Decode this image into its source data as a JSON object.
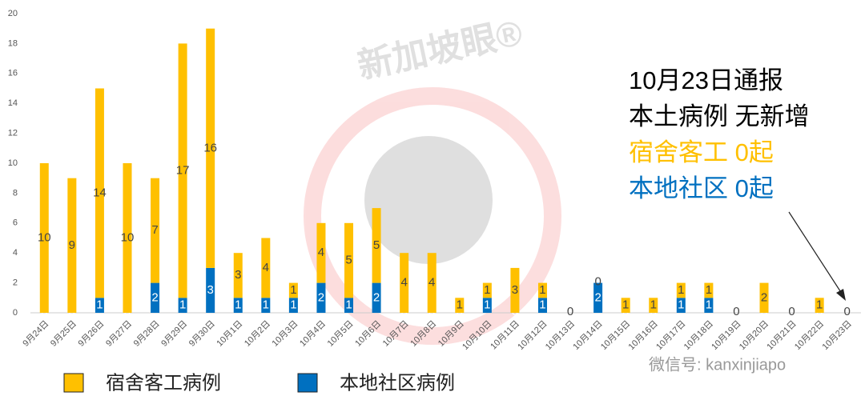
{
  "chart_data": {
    "type": "stacked-bar",
    "categories": [
      "9月24日",
      "9月25日",
      "9月26日",
      "9月27日",
      "9月28日",
      "9月29日",
      "9月30日",
      "10月1日",
      "10月2日",
      "10月3日",
      "10月4日",
      "10月5日",
      "10月6日",
      "10月7日",
      "10月8日",
      "10月9日",
      "10月10日",
      "10月11日",
      "10月12日",
      "10月13日",
      "10月14日",
      "10月15日",
      "10月16日",
      "10月17日",
      "10月18日",
      "10月19日",
      "10月20日",
      "10月21日",
      "10月22日",
      "10月23日"
    ],
    "series": [
      {
        "name": "宿舍客工病例",
        "color": "#FFC000",
        "values": [
          10,
          9,
          14,
          10,
          7,
          17,
          16,
          3,
          4,
          1,
          4,
          5,
          5,
          4,
          4,
          1,
          1,
          3,
          1,
          0,
          0,
          1,
          1,
          1,
          1,
          0,
          2,
          0,
          1,
          0
        ]
      },
      {
        "name": "本地社区病例",
        "color": "#0070C0",
        "values": [
          0,
          0,
          1,
          0,
          2,
          1,
          3,
          1,
          1,
          1,
          2,
          1,
          2,
          0,
          0,
          0,
          1,
          0,
          1,
          0,
          2,
          0,
          0,
          1,
          1,
          0,
          0,
          0,
          0,
          0
        ]
      }
    ],
    "ylim": [
      0,
      20
    ],
    "yticks": [
      0,
      2,
      4,
      6,
      8,
      10,
      12,
      14,
      16,
      18,
      20
    ],
    "grid": false,
    "legend": "bottom",
    "annotations": [
      {
        "text": "10月23日通报",
        "color": "#000000"
      },
      {
        "text": "本土病例 无新增",
        "color": "#000000"
      },
      {
        "text": "宿舍客工 0起",
        "color": "#FFC000"
      },
      {
        "text": "本地社区 0起",
        "color": "#0070C0"
      }
    ],
    "watermarks": [
      "新加坡眼®",
      "微信号: kanxinjiapo"
    ]
  }
}
